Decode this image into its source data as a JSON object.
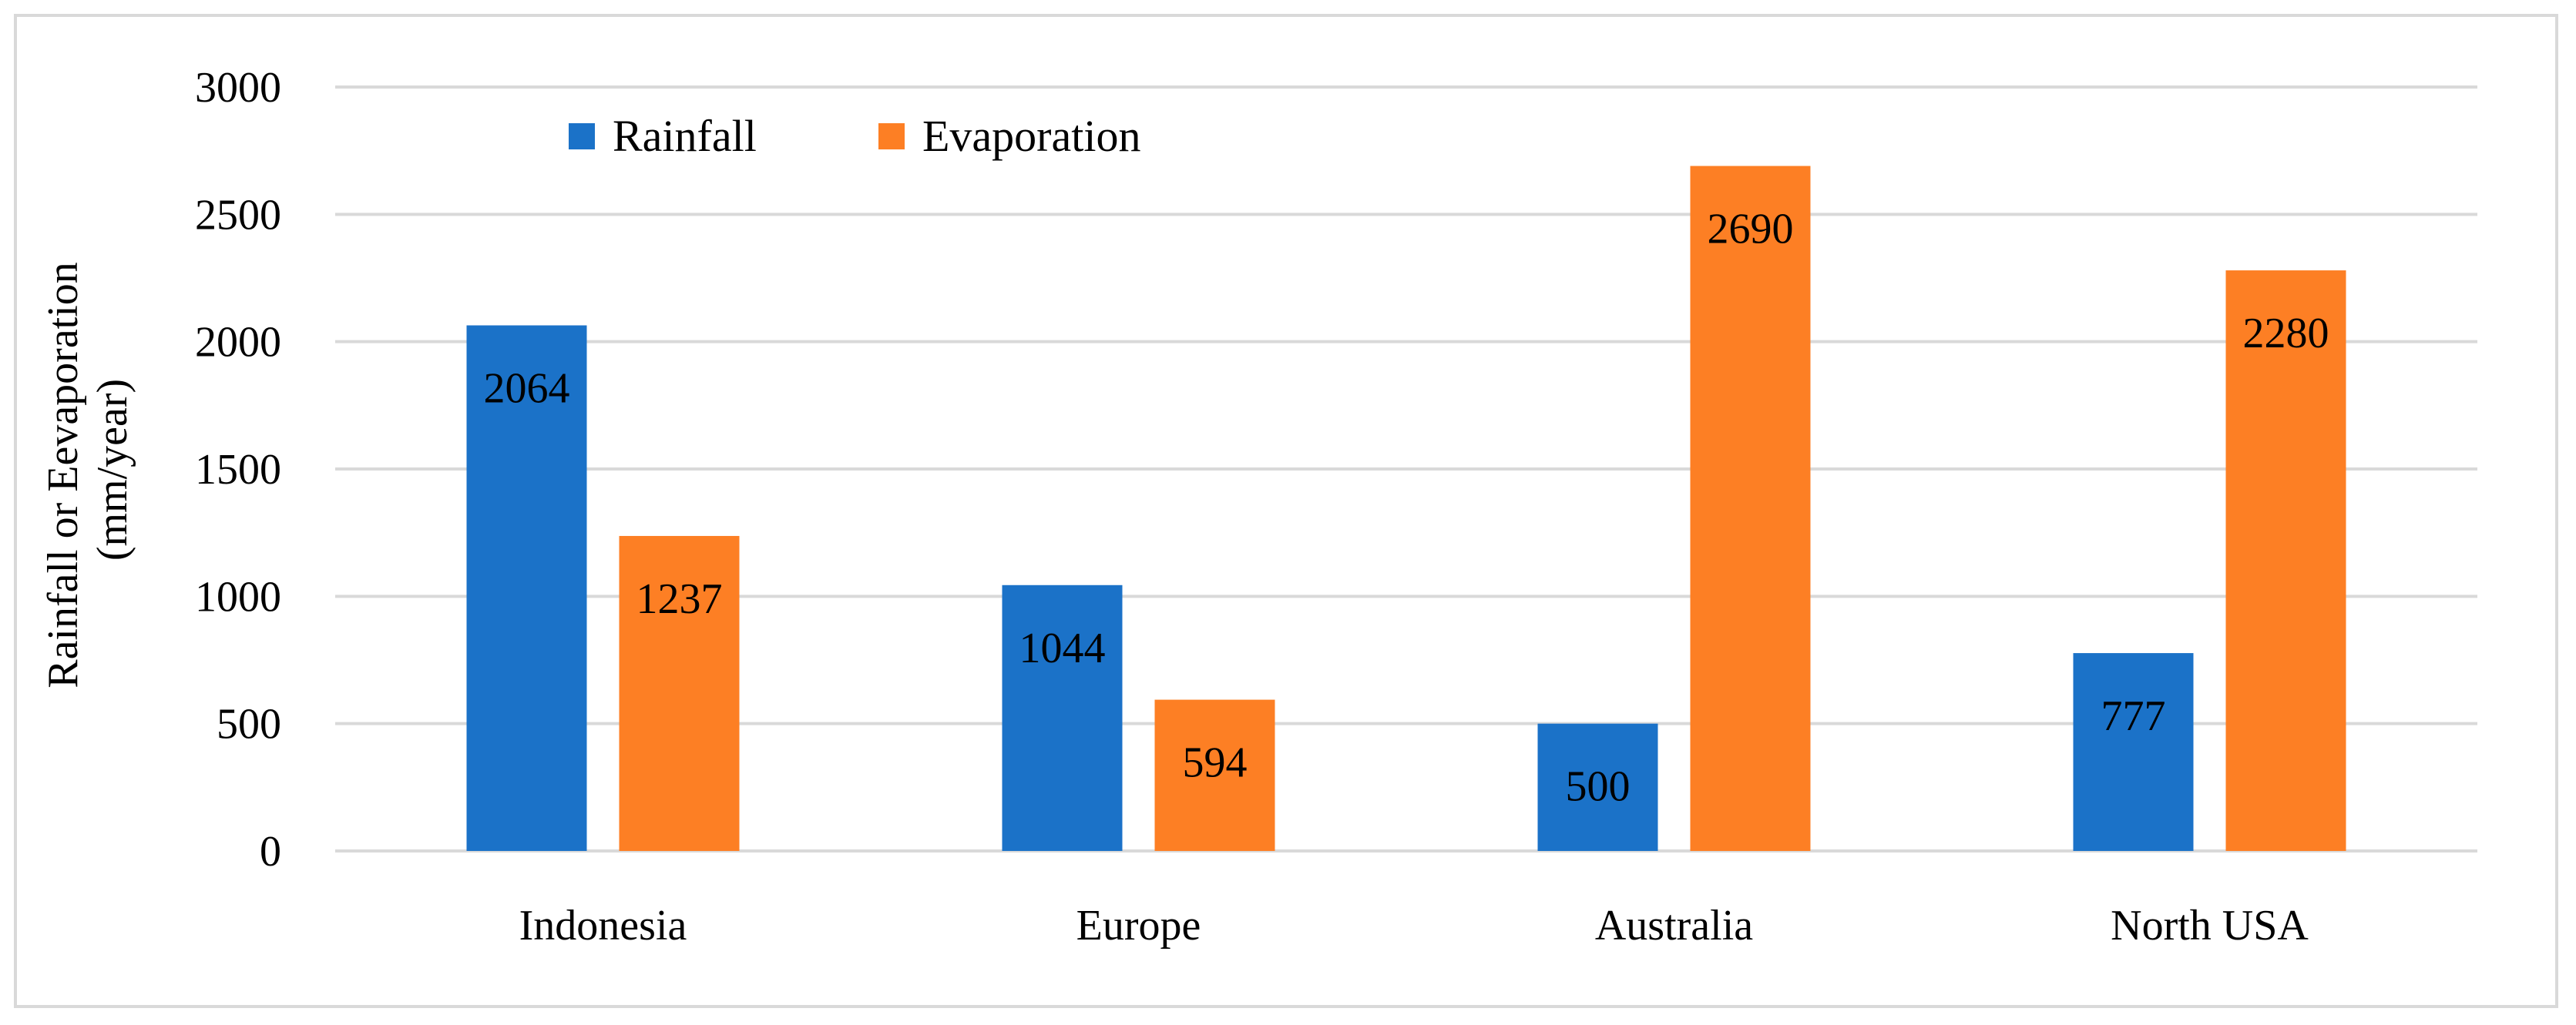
{
  "chart_data": {
    "type": "bar",
    "title": "",
    "xlabel": "",
    "ylabel_lines": [
      "Rainfall or Eevaporation",
      "(mm/year)"
    ],
    "categories": [
      "Indonesia",
      "Europe",
      "Australia",
      "North USA"
    ],
    "series": [
      {
        "name": "Rainfall",
        "values": [
          2064,
          1044,
          500,
          777
        ],
        "color": "#1b72c8"
      },
      {
        "name": "Evaporation",
        "values": [
          1237,
          594,
          2690,
          2280
        ],
        "color": "#fd7f24"
      }
    ],
    "ylim": [
      0,
      3000
    ],
    "yticks": [
      0,
      500,
      1000,
      1500,
      2000,
      2500,
      3000
    ],
    "grid": true,
    "legend_position": "top-left",
    "data_labels": true
  }
}
